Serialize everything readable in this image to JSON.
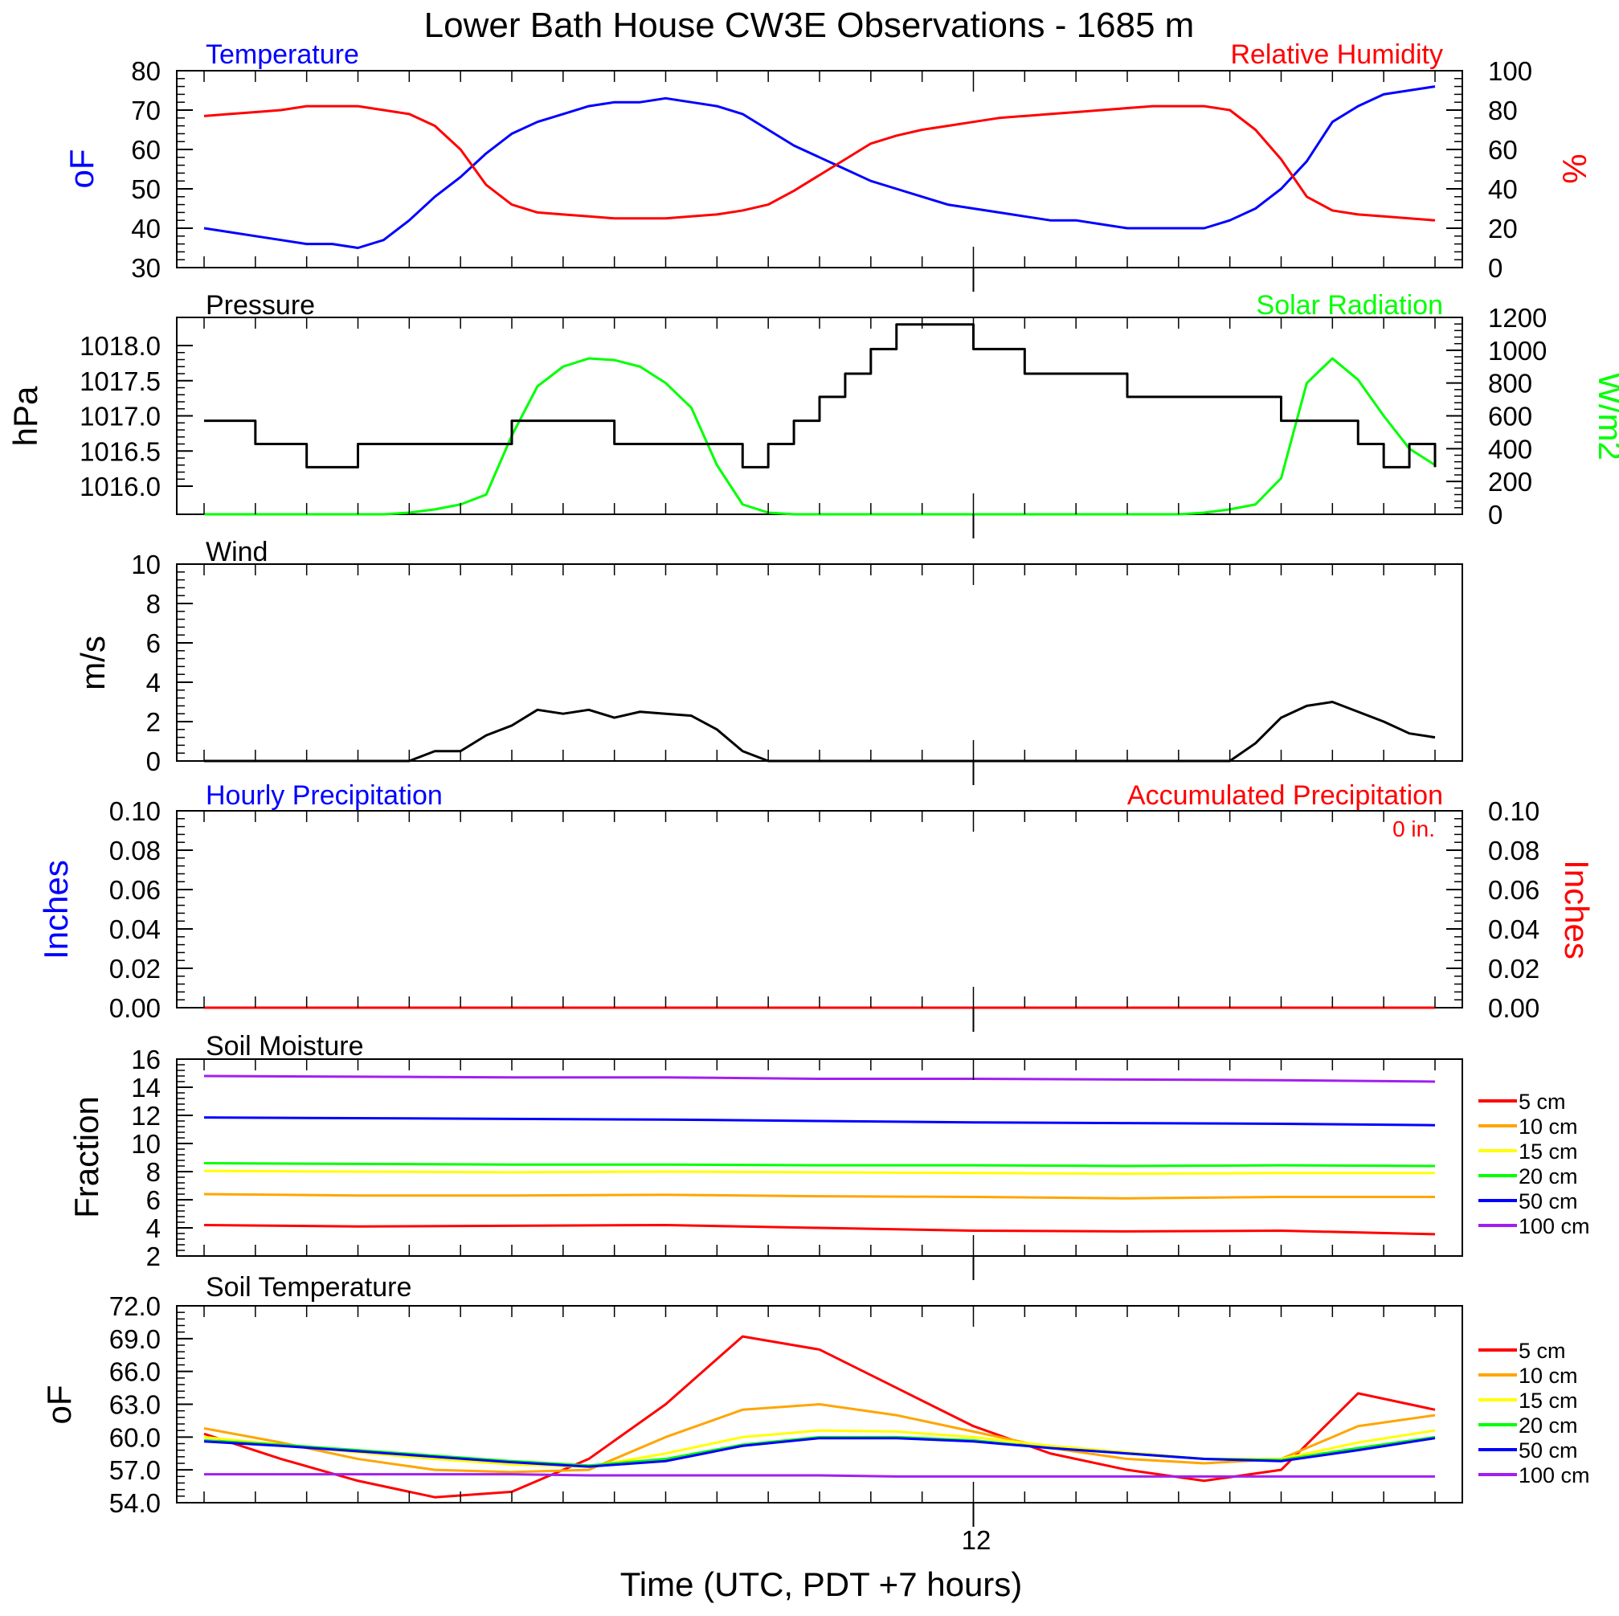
{
  "title": "Lower Bath House CW3E Observations - 1685 m",
  "xlabel": "Time (UTC, PDT +7 hours)",
  "x_tick_label": "12",
  "colors": {
    "temperature": "#0000ff",
    "relative_humidity": "#ff0000",
    "pressure": "#000000",
    "solar_radiation": "#00ff00",
    "wind": "#000000",
    "hourly_precip": "#0000ff",
    "accum_precip": "#ff0000",
    "depths": [
      "#ff0000",
      "#ffa500",
      "#ffff00",
      "#00ff00",
      "#0000ff",
      "#a020f0"
    ]
  },
  "chart_data": [
    {
      "type": "line",
      "title_left": "Temperature",
      "title_right": "Relative Humidity",
      "ylabel_left": "oF",
      "ylabel_right": "%",
      "ylim_left": [
        30,
        80
      ],
      "ylim_right": [
        0,
        100
      ],
      "yticks_left": [
        "30",
        "40",
        "50",
        "60",
        "70",
        "80"
      ],
      "yticks_right": [
        "0",
        "20",
        "40",
        "60",
        "80",
        "100"
      ],
      "x_hours": [
        0,
        48
      ],
      "series": [
        {
          "name": "Temperature",
          "axis": "left",
          "color": "#0000ff",
          "x": [
            0,
            1,
            2,
            3,
            4,
            5,
            6,
            7,
            8,
            9,
            10,
            11,
            12,
            13,
            14,
            15,
            16,
            17,
            18,
            19,
            20,
            21,
            22,
            23,
            24,
            25,
            26,
            27,
            28,
            29,
            30,
            31,
            32,
            33,
            34,
            35,
            36,
            37,
            38,
            39,
            40,
            41,
            42,
            43,
            44,
            45,
            46,
            47,
            48
          ],
          "y": [
            40,
            39,
            38,
            37,
            36,
            36,
            35,
            37,
            42,
            48,
            53,
            59,
            64,
            67,
            69,
            71,
            72,
            72,
            73,
            72,
            71,
            69,
            65,
            61,
            58,
            55,
            52,
            50,
            48,
            46,
            45,
            44,
            43,
            42,
            42,
            41,
            40,
            40,
            40,
            40,
            42,
            45,
            50,
            57,
            67,
            71,
            74,
            75,
            76
          ]
        },
        {
          "name": "Relative Humidity",
          "axis": "right",
          "color": "#ff0000",
          "x": [
            0,
            1,
            2,
            3,
            4,
            5,
            6,
            7,
            8,
            9,
            10,
            11,
            12,
            13,
            14,
            15,
            16,
            17,
            18,
            19,
            20,
            21,
            22,
            23,
            24,
            25,
            26,
            27,
            28,
            29,
            30,
            31,
            32,
            33,
            34,
            35,
            36,
            37,
            38,
            39,
            40,
            41,
            42,
            43,
            44,
            45,
            46,
            47,
            48
          ],
          "y": [
            77,
            78,
            79,
            80,
            82,
            82,
            82,
            80,
            78,
            72,
            60,
            42,
            32,
            28,
            27,
            26,
            25,
            25,
            25,
            26,
            27,
            29,
            32,
            39,
            47,
            55,
            63,
            67,
            70,
            72,
            74,
            76,
            77,
            78,
            79,
            80,
            81,
            82,
            82,
            82,
            80,
            70,
            55,
            36,
            29,
            27,
            26,
            25,
            24
          ]
        }
      ]
    },
    {
      "type": "line",
      "title_left": "Pressure",
      "title_right": "Solar Radiation",
      "ylabel_left": "hPa",
      "ylabel_right": "W/m2",
      "ylim_left": [
        1015.6,
        1018.4
      ],
      "ylim_right": [
        0,
        1200
      ],
      "yticks_left": [
        "1016.0",
        "1016.5",
        "1017.0",
        "1017.5",
        "1018.0"
      ],
      "yticks_left_values": [
        1016.0,
        1016.5,
        1017.0,
        1017.5,
        1018.0
      ],
      "yticks_right": [
        "0",
        "200",
        "400",
        "600",
        "800",
        "1000",
        "1200"
      ],
      "series": [
        {
          "name": "Pressure",
          "axis": "left",
          "color": "#000000",
          "x": [
            0,
            1,
            2,
            3,
            4,
            5,
            6,
            7,
            8,
            9,
            10,
            11,
            12,
            13,
            14,
            15,
            16,
            17,
            18,
            19,
            20,
            21,
            22,
            23,
            24,
            25,
            26,
            27,
            28,
            29,
            30,
            31,
            32,
            33,
            34,
            35,
            36,
            37,
            38,
            39,
            40,
            41,
            42,
            43,
            44,
            45,
            46,
            47,
            48
          ],
          "y": [
            1016.93,
            1016.93,
            1016.6,
            1016.6,
            1016.27,
            1016.27,
            1016.6,
            1016.6,
            1016.6,
            1016.6,
            1016.6,
            1016.6,
            1016.93,
            1016.93,
            1016.93,
            1016.93,
            1016.6,
            1016.6,
            1016.6,
            1016.6,
            1016.6,
            1016.27,
            1016.6,
            1016.93,
            1017.27,
            1017.6,
            1017.95,
            1018.3,
            1018.3,
            1018.3,
            1017.95,
            1017.95,
            1017.6,
            1017.6,
            1017.6,
            1017.6,
            1017.27,
            1017.27,
            1017.27,
            1017.27,
            1017.27,
            1017.27,
            1016.93,
            1016.93,
            1016.93,
            1016.6,
            1016.27,
            1016.6,
            1016.27
          ]
        },
        {
          "name": "Solar Radiation",
          "axis": "right",
          "color": "#00ff00",
          "x": [
            0,
            1,
            2,
            3,
            4,
            5,
            6,
            7,
            8,
            9,
            10,
            11,
            12,
            13,
            14,
            15,
            16,
            17,
            18,
            19,
            20,
            21,
            22,
            23,
            24,
            25,
            26,
            27,
            28,
            29,
            30,
            31,
            32,
            33,
            34,
            35,
            36,
            37,
            38,
            39,
            40,
            41,
            42,
            43,
            44,
            45,
            46,
            47,
            48
          ],
          "y": [
            0,
            0,
            0,
            0,
            0,
            0,
            0,
            0,
            10,
            30,
            60,
            120,
            480,
            780,
            900,
            950,
            940,
            900,
            800,
            650,
            300,
            60,
            10,
            0,
            0,
            0,
            0,
            0,
            0,
            0,
            0,
            0,
            0,
            0,
            0,
            0,
            0,
            0,
            0,
            10,
            30,
            60,
            220,
            800,
            950,
            820,
            600,
            400,
            300
          ]
        }
      ]
    },
    {
      "type": "line",
      "title_left": "Wind",
      "ylabel_left": "m/s",
      "ylim_left": [
        0,
        10
      ],
      "yticks_left": [
        "0",
        "2",
        "4",
        "6",
        "8",
        "10"
      ],
      "series": [
        {
          "name": "Wind",
          "axis": "left",
          "color": "#000000",
          "x": [
            0,
            1,
            2,
            3,
            4,
            5,
            6,
            7,
            8,
            9,
            10,
            11,
            12,
            13,
            14,
            15,
            16,
            17,
            18,
            19,
            20,
            21,
            22,
            23,
            24,
            25,
            26,
            27,
            28,
            29,
            30,
            31,
            32,
            33,
            34,
            35,
            36,
            37,
            38,
            39,
            40,
            41,
            42,
            43,
            44,
            45,
            46,
            47,
            48
          ],
          "y": [
            0,
            0,
            0,
            0,
            0,
            0,
            0,
            0,
            0,
            0.5,
            0.5,
            1.3,
            1.8,
            2.6,
            2.4,
            2.6,
            2.2,
            2.5,
            2.4,
            2.3,
            1.6,
            0.5,
            0,
            0,
            0,
            0,
            0,
            0,
            0,
            0,
            0,
            0,
            0,
            0,
            0,
            0,
            0,
            0,
            0,
            0,
            0,
            0.9,
            2.2,
            2.8,
            3.0,
            2.5,
            2.0,
            1.4,
            1.2
          ]
        }
      ]
    },
    {
      "type": "line",
      "title_left": "Hourly Precipitation",
      "title_right": "Accumulated Precipitation",
      "annotation": "0 in.",
      "ylabel_left": "Inches",
      "ylabel_right": "Inches",
      "ylim_left": [
        0,
        0.1
      ],
      "ylim_right": [
        0,
        0.1
      ],
      "yticks_left": [
        "0.00",
        "0.02",
        "0.04",
        "0.06",
        "0.08",
        "0.10"
      ],
      "yticks_right": [
        "0.00",
        "0.02",
        "0.04",
        "0.06",
        "0.08",
        "0.10"
      ],
      "series": [
        {
          "name": "Hourly Precipitation",
          "axis": "left",
          "color": "#0000ff",
          "x": [
            0,
            48
          ],
          "y": [
            0,
            0
          ]
        },
        {
          "name": "Accumulated Precipitation",
          "axis": "right",
          "color": "#ff0000",
          "x": [
            0,
            48
          ],
          "y": [
            0,
            0
          ]
        }
      ]
    },
    {
      "type": "line",
      "title_left": "Soil Moisture",
      "ylabel_left": "Fraction",
      "ylim_left": [
        2,
        16
      ],
      "yticks_left": [
        "2",
        "4",
        "6",
        "8",
        "10",
        "12",
        "14",
        "16"
      ],
      "x": [
        0,
        6,
        12,
        18,
        24,
        30,
        36,
        42,
        48
      ],
      "series": [
        {
          "name": "5 cm",
          "color": "#ff0000",
          "y": [
            4.2,
            4.1,
            4.15,
            4.2,
            4.0,
            3.8,
            3.75,
            3.8,
            3.55
          ]
        },
        {
          "name": "10 cm",
          "color": "#ffa500",
          "y": [
            6.4,
            6.3,
            6.3,
            6.35,
            6.25,
            6.2,
            6.1,
            6.2,
            6.2
          ]
        },
        {
          "name": "15 cm",
          "color": "#ffff00",
          "y": [
            8.05,
            8.0,
            7.95,
            8.0,
            7.95,
            7.9,
            7.85,
            7.9,
            7.9
          ]
        },
        {
          "name": "20 cm",
          "color": "#00ff00",
          "y": [
            8.6,
            8.55,
            8.5,
            8.5,
            8.45,
            8.45,
            8.4,
            8.45,
            8.4
          ]
        },
        {
          "name": "50 cm",
          "color": "#0000ff",
          "y": [
            11.85,
            11.8,
            11.75,
            11.7,
            11.6,
            11.5,
            11.45,
            11.4,
            11.3
          ]
        },
        {
          "name": "100 cm",
          "color": "#a020f0",
          "y": [
            14.8,
            14.75,
            14.7,
            14.7,
            14.6,
            14.6,
            14.55,
            14.5,
            14.4
          ]
        }
      ]
    },
    {
      "type": "line",
      "title_left": "Soil Temperature",
      "ylabel_left": "oF",
      "ylim_left": [
        54.0,
        72.0
      ],
      "yticks_left": [
        "54.0",
        "57.0",
        "60.0",
        "63.0",
        "66.0",
        "69.0",
        "72.0"
      ],
      "x": [
        0,
        3,
        6,
        9,
        12,
        15,
        18,
        21,
        24,
        27,
        30,
        33,
        36,
        39,
        42,
        45,
        48
      ],
      "series": [
        {
          "name": "5 cm",
          "color": "#ff0000",
          "y": [
            60.3,
            58.0,
            56.0,
            54.5,
            55.0,
            58.0,
            63.0,
            69.2,
            68.0,
            64.5,
            61.0,
            58.5,
            57.0,
            56.0,
            57.0,
            64.0,
            62.5
          ]
        },
        {
          "name": "10 cm",
          "color": "#ffa500",
          "y": [
            60.8,
            59.5,
            58.0,
            57.0,
            56.8,
            57.0,
            60.0,
            62.5,
            63.0,
            62.0,
            60.5,
            59.0,
            58.0,
            57.6,
            58.0,
            61.0,
            62.0
          ]
        },
        {
          "name": "15 cm",
          "color": "#ffff00",
          "y": [
            60.0,
            59.3,
            58.6,
            58.0,
            57.5,
            57.3,
            58.5,
            60.0,
            60.6,
            60.5,
            60.0,
            59.2,
            58.6,
            58.0,
            58.0,
            59.5,
            60.6
          ]
        },
        {
          "name": "20 cm",
          "color": "#00ff00",
          "y": [
            59.7,
            59.3,
            58.8,
            58.3,
            57.8,
            57.4,
            58.0,
            59.3,
            60.0,
            60.0,
            59.7,
            59.0,
            58.5,
            58.0,
            57.9,
            59.0,
            60.0
          ]
        },
        {
          "name": "50 cm",
          "color": "#0000ff",
          "y": [
            59.6,
            59.2,
            58.7,
            58.2,
            57.7,
            57.3,
            57.8,
            59.2,
            59.9,
            59.9,
            59.6,
            59.0,
            58.5,
            58.0,
            57.8,
            58.8,
            59.9
          ]
        },
        {
          "name": "100 cm",
          "color": "#a020f0",
          "y": [
            56.6,
            56.6,
            56.6,
            56.6,
            56.6,
            56.5,
            56.5,
            56.5,
            56.5,
            56.4,
            56.4,
            56.4,
            56.4,
            56.4,
            56.4,
            56.4,
            56.4
          ]
        }
      ]
    }
  ]
}
